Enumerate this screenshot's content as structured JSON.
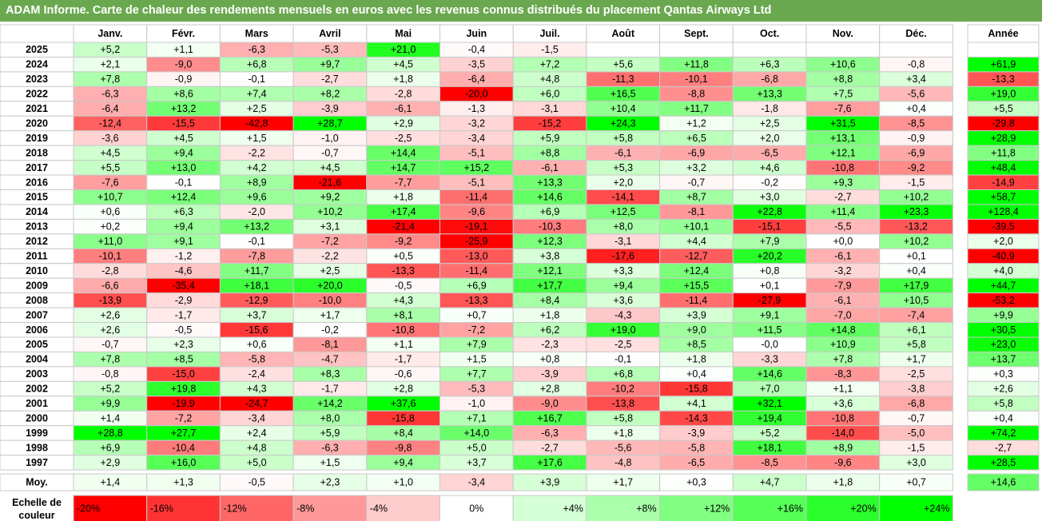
{
  "title": "ADAM Informe. Carte de chaleur des rendements mensuels en euros avec les revenus connus distribués du placement Qantas Airways Ltd",
  "chart_data": {
    "type": "heatmap",
    "columns": [
      "Janv.",
      "Févr.",
      "Mars",
      "Avril",
      "Mai",
      "Juin",
      "Juil.",
      "Août",
      "Sept.",
      "Oct.",
      "Nov.",
      "Déc."
    ],
    "year_header": "Année",
    "avg_label": "Moy.",
    "rows": [
      {
        "year": "2025",
        "values": [
          "+5,2",
          "+1,1",
          "-6,3",
          "-5,3",
          "+21,0",
          "-0,4",
          "-1,5",
          "",
          "",
          "",
          "",
          ""
        ],
        "annual": ""
      },
      {
        "year": "2024",
        "values": [
          "+2,1",
          "-9,0",
          "+6,8",
          "+9,7",
          "+4,5",
          "-3,5",
          "+7,2",
          "+5,6",
          "+11,8",
          "+6,3",
          "+10,6",
          "-0,8"
        ],
        "annual": "+61,9"
      },
      {
        "year": "2023",
        "values": [
          "+7,8",
          "-0,9",
          "-0,1",
          "-2,7",
          "+1,8",
          "-6,4",
          "+4,8",
          "-11,3",
          "-10,1",
          "-6,8",
          "+8,8",
          "+3,4"
        ],
        "annual": "-13,3"
      },
      {
        "year": "2022",
        "values": [
          "-6,3",
          "+8,6",
          "+7,4",
          "+8,2",
          "-2,8",
          "-20,0",
          "+6,0",
          "+16,5",
          "-8,8",
          "+13,3",
          "+7,5",
          "-5,6"
        ],
        "annual": "+19,0"
      },
      {
        "year": "2021",
        "values": [
          "-6,4",
          "+13,2",
          "+2,5",
          "-3,9",
          "-6,1",
          "-1,3",
          "-3,1",
          "+10,4",
          "+11,7",
          "-1,8",
          "-7,6",
          "+0,4"
        ],
        "annual": "+5,5"
      },
      {
        "year": "2020",
        "values": [
          "-12,4",
          "-15,5",
          "-42,8",
          "+28,7",
          "+2,9",
          "-3,2",
          "-15,2",
          "+24,3",
          "+1,2",
          "+2,5",
          "+31,5",
          "-8,5"
        ],
        "annual": "-29,8"
      },
      {
        "year": "2019",
        "values": [
          "-3,6",
          "+4,5",
          "+1,5",
          "-1,0",
          "-2,5",
          "-3,4",
          "+5,9",
          "+5,8",
          "+6,5",
          "+2,0",
          "+13,1",
          "-0,9"
        ],
        "annual": "+28,9"
      },
      {
        "year": "2018",
        "values": [
          "+4,5",
          "+9,4",
          "-2,2",
          "-0,7",
          "+14,4",
          "-5,1",
          "+8,8",
          "-6,1",
          "-6,9",
          "-6,5",
          "+12,1",
          "-6,9"
        ],
        "annual": "+11,8"
      },
      {
        "year": "2017",
        "values": [
          "+5,5",
          "+13,0",
          "+4,2",
          "+4,5",
          "+14,7",
          "+15,2",
          "-6,1",
          "+5,3",
          "+3,2",
          "+4,6",
          "-10,8",
          "-9,2"
        ],
        "annual": "+48,4"
      },
      {
        "year": "2016",
        "values": [
          "-7,6",
          "-0,1",
          "+8,9",
          "-21,6",
          "-7,7",
          "-5,1",
          "+13,3",
          "+2,0",
          "-0,7",
          "-0,2",
          "+9,3",
          "-1,5"
        ],
        "annual": "-14,9"
      },
      {
        "year": "2015",
        "values": [
          "+10,7",
          "+12,4",
          "+9,6",
          "+9,2",
          "+1,8",
          "-11,4",
          "+14,6",
          "-14,1",
          "+8,7",
          "+3,0",
          "-2,7",
          "+10,2"
        ],
        "annual": "+58,7"
      },
      {
        "year": "2014",
        "values": [
          "+0,6",
          "+6,3",
          "-2,0",
          "+10,2",
          "+17,4",
          "-9,6",
          "+6,9",
          "+12,5",
          "-8,1",
          "+22,8",
          "+11,4",
          "+23,3"
        ],
        "annual": "+128,4"
      },
      {
        "year": "2013",
        "values": [
          "+0,2",
          "+9,4",
          "+13,2",
          "+3,1",
          "-21,4",
          "-19,1",
          "-10,3",
          "+8,0",
          "+10,1",
          "-15,1",
          "-5,5",
          "-13,2"
        ],
        "annual": "-39,5"
      },
      {
        "year": "2012",
        "values": [
          "+11,0",
          "+9,1",
          "-0,1",
          "-7,2",
          "-9,2",
          "-25,9",
          "+12,3",
          "-3,1",
          "+4,4",
          "+7,9",
          "+0,0",
          "+10,2"
        ],
        "annual": "+2,0"
      },
      {
        "year": "2011",
        "values": [
          "-10,1",
          "-1,2",
          "-7,8",
          "-2,2",
          "+0,5",
          "-13,0",
          "+3,8",
          "-17,6",
          "-12,7",
          "+20,2",
          "-6,1",
          "+0,1"
        ],
        "annual": "-40,9"
      },
      {
        "year": "2010",
        "values": [
          "-2,8",
          "-4,6",
          "+11,7",
          "+2,5",
          "-13,3",
          "-11,4",
          "+12,1",
          "+3,3",
          "+12,4",
          "+0,8",
          "-3,2",
          "+0,4"
        ],
        "annual": "+4,0"
      },
      {
        "year": "2009",
        "values": [
          "-6,6",
          "-35,4",
          "+18,1",
          "+20,0",
          "-0,5",
          "+6,9",
          "+17,7",
          "+9,4",
          "+15,5",
          "+0,1",
          "-7,9",
          "+17,9"
        ],
        "annual": "+44,7"
      },
      {
        "year": "2008",
        "values": [
          "-13,9",
          "-2,9",
          "-12,9",
          "-10,0",
          "+4,3",
          "-13,3",
          "+8,4",
          "+3,6",
          "-11,4",
          "-27,9",
          "-6,1",
          "+10,5"
        ],
        "annual": "-53,2"
      },
      {
        "year": "2007",
        "values": [
          "+2,6",
          "-1,7",
          "+3,7",
          "+1,7",
          "+8,1",
          "+0,7",
          "+1,8",
          "-4,3",
          "+3,9",
          "+9,1",
          "-7,0",
          "-7,4"
        ],
        "annual": "+9,9"
      },
      {
        "year": "2006",
        "values": [
          "+2,6",
          "-0,5",
          "-15,6",
          "-0,2",
          "-10,8",
          "-7,2",
          "+6,2",
          "+19,0",
          "+9,0",
          "+11,5",
          "+14,8",
          "+6,1"
        ],
        "annual": "+30,5"
      },
      {
        "year": "2005",
        "values": [
          "-0,7",
          "+2,3",
          "+0,6",
          "-8,1",
          "+1,1",
          "+7,9",
          "-2,3",
          "-2,5",
          "+8,5",
          "-0,0",
          "+10,9",
          "+5,8"
        ],
        "annual": "+23,0"
      },
      {
        "year": "2004",
        "values": [
          "+7,8",
          "+8,5",
          "-5,8",
          "-4,7",
          "-1,7",
          "+1,5",
          "+0,8",
          "-0,1",
          "+1,8",
          "-3,3",
          "+7,8",
          "+1,7"
        ],
        "annual": "+13,7"
      },
      {
        "year": "2003",
        "values": [
          "-0,8",
          "-15,0",
          "-2,4",
          "+8,3",
          "-0,6",
          "+7,7",
          "-3,9",
          "+6,8",
          "+0,4",
          "+14,6",
          "-8,3",
          "-2,5"
        ],
        "annual": "+0,3"
      },
      {
        "year": "2002",
        "values": [
          "+5,2",
          "+19,8",
          "+4,3",
          "-1,7",
          "+2,8",
          "-5,3",
          "+2,8",
          "-10,2",
          "-15,8",
          "+7,0",
          "+1,1",
          "-3,8"
        ],
        "annual": "+2,6"
      },
      {
        "year": "2001",
        "values": [
          "+9,9",
          "-19,9",
          "-24,7",
          "+14,2",
          "+37,6",
          "-1,0",
          "-9,0",
          "-13,8",
          "+4,1",
          "+32,1",
          "+3,6",
          "-6,8"
        ],
        "annual": "+5,8"
      },
      {
        "year": "2000",
        "values": [
          "+1,4",
          "-7,2",
          "-3,4",
          "+8,0",
          "-15,8",
          "+7,1",
          "+16,7",
          "+5,8",
          "-14,3",
          "+19,4",
          "-10,8",
          "-0,7"
        ],
        "annual": "+0,4"
      },
      {
        "year": "1999",
        "values": [
          "+28,8",
          "+27,7",
          "+2,4",
          "+5,9",
          "+8,4",
          "+14,0",
          "-6,3",
          "+1,8",
          "-3,9",
          "+5,2",
          "-14,0",
          "-5,0"
        ],
        "annual": "+74,2"
      },
      {
        "year": "1998",
        "values": [
          "+6,9",
          "-10,4",
          "+4,8",
          "-6,3",
          "-9,8",
          "+5,0",
          "-2,7",
          "-5,6",
          "-5,8",
          "+18,1",
          "+8,9",
          "-1,5"
        ],
        "annual": "-2,7"
      },
      {
        "year": "1997",
        "values": [
          "+2,9",
          "+16,0",
          "+5,0",
          "+1,5",
          "+9,4",
          "+3,7",
          "+17,6",
          "-4,8",
          "-6,5",
          "-8,5",
          "-9,6",
          "+3,0"
        ],
        "annual": "+28,5"
      }
    ],
    "average": {
      "values": [
        "+1,4",
        "+1,3",
        "-0,5",
        "+2,3",
        "+1,0",
        "-3,4",
        "+3,9",
        "+1,7",
        "+0,3",
        "+4,7",
        "+1,8",
        "+0,7"
      ],
      "annual": "+14,6"
    },
    "scale": {
      "label_lines": [
        "Echelle de",
        "couleur"
      ],
      "stops": [
        {
          "label": "-20%",
          "value": -20
        },
        {
          "label": "-16%",
          "value": -16
        },
        {
          "label": "-12%",
          "value": -12
        },
        {
          "label": "-8%",
          "value": -8
        },
        {
          "label": "-4%",
          "value": -4
        },
        {
          "label": "0%",
          "value": 0
        },
        {
          "label": "+4%",
          "value": 4
        },
        {
          "label": "+8%",
          "value": 8
        },
        {
          "label": "+12%",
          "value": 12
        },
        {
          "label": "+16%",
          "value": 16
        },
        {
          "label": "+20%",
          "value": 20
        },
        {
          "label": "+24%",
          "value": 24
        }
      ]
    },
    "colors": {
      "negative": "#ff0000",
      "neutral": "#ffffff",
      "positive": "#00ff00",
      "title_background": "#6aa84f",
      "title_text": "#ffffff"
    }
  }
}
